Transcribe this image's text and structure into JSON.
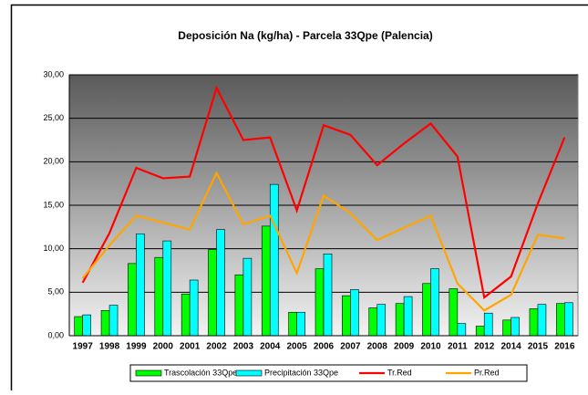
{
  "chart_data": {
    "type": "bar-line",
    "title": "Deposición Na (kg/ha) - Parcela 33Qpe (Palencia)",
    "categories": [
      "1997",
      "1998",
      "1999",
      "2000",
      "2001",
      "2002",
      "2003",
      "2004",
      "2005",
      "2006",
      "2007",
      "2008",
      "2009",
      "2010",
      "2011",
      "2012",
      "2014",
      "2015",
      "2016"
    ],
    "series": [
      {
        "name": "Trascolación  33Qpe",
        "kind": "bar",
        "color": "#00ff00",
        "values": [
          2.2,
          2.9,
          8.3,
          9.0,
          4.8,
          9.9,
          7.0,
          12.6,
          2.7,
          7.7,
          4.6,
          3.2,
          3.7,
          6.0,
          5.4,
          1.1,
          1.8,
          3.1,
          3.7
        ]
      },
      {
        "name": "Precipitación 33Qpe",
        "kind": "bar",
        "color": "#00ffff",
        "values": [
          2.4,
          3.5,
          11.7,
          10.9,
          6.4,
          12.2,
          8.9,
          17.4,
          2.7,
          9.4,
          5.3,
          3.6,
          4.5,
          7.7,
          1.4,
          2.6,
          2.1,
          3.6,
          3.8
        ]
      },
      {
        "name": "Tr.Red",
        "kind": "line",
        "color": "#ff0000",
        "values": [
          6.1,
          11.8,
          19.3,
          18.1,
          18.3,
          28.5,
          22.5,
          22.8,
          14.4,
          24.2,
          23.1,
          19.6,
          22.1,
          24.4,
          20.6,
          4.4,
          6.8,
          15.2,
          22.8
        ]
      },
      {
        "name": "Pr.Red",
        "kind": "line",
        "color": "#ffa500",
        "values": [
          6.6,
          10.4,
          13.8,
          13.0,
          12.2,
          18.7,
          12.8,
          13.8,
          7.2,
          16.1,
          14.1,
          11.0,
          12.4,
          13.8,
          6.0,
          2.9,
          4.7,
          11.6,
          11.2
        ]
      }
    ],
    "ylim": [
      0,
      30
    ],
    "yticks": [
      {
        "value": 0,
        "label": "0,00"
      },
      {
        "value": 5,
        "label": "5,00"
      },
      {
        "value": 10,
        "label": "10,00"
      },
      {
        "value": 15,
        "label": "15,00"
      },
      {
        "value": 20,
        "label": "20,00"
      },
      {
        "value": 25,
        "label": "25,00"
      },
      {
        "value": 30,
        "label": "30,00"
      }
    ],
    "grid": true,
    "legend": "bottom"
  }
}
